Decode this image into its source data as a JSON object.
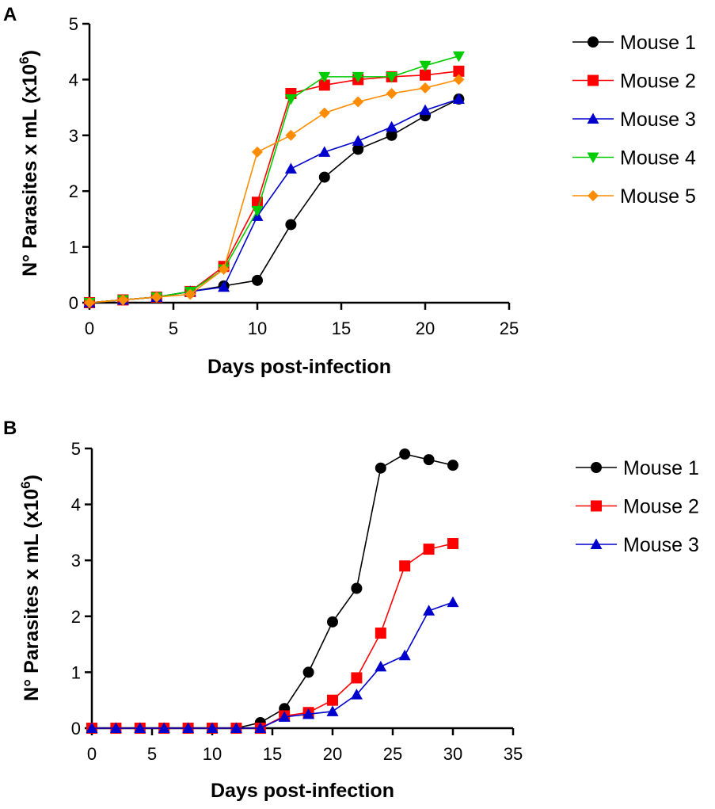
{
  "chart_data": [
    {
      "panel": "A",
      "type": "line",
      "xlabel": "Days post-infection",
      "ylabel_main": "N° Parasites x mL  (x10",
      "ylabel_sup": "6",
      "ylabel_close": ")",
      "xlim": [
        0,
        25
      ],
      "ylim": [
        0,
        5
      ],
      "xticks": [
        0,
        5,
        10,
        15,
        20,
        25
      ],
      "yticks": [
        0,
        1,
        2,
        3,
        4,
        5
      ],
      "grid": false,
      "legend_position": "right",
      "series": [
        {
          "name": "Mouse 1",
          "color": "#000000",
          "marker": "circle",
          "x": [
            0,
            2,
            4,
            6,
            8,
            10,
            12,
            14,
            16,
            18,
            20,
            22
          ],
          "y": [
            0,
            0.05,
            0.1,
            0.2,
            0.3,
            0.4,
            1.4,
            2.25,
            2.75,
            3.0,
            3.35,
            3.65
          ]
        },
        {
          "name": "Mouse 2",
          "color": "#ff0000",
          "marker": "square",
          "x": [
            0,
            2,
            4,
            6,
            8,
            10,
            12,
            14,
            16,
            18,
            20,
            22
          ],
          "y": [
            0,
            0.05,
            0.1,
            0.2,
            0.65,
            1.8,
            3.75,
            3.9,
            4.0,
            4.05,
            4.08,
            4.15
          ]
        },
        {
          "name": "Mouse 3",
          "color": "#0000cc",
          "marker": "triangle-up",
          "x": [
            0,
            2,
            4,
            6,
            8,
            10,
            12,
            14,
            16,
            18,
            20,
            22
          ],
          "y": [
            0,
            0.05,
            0.1,
            0.2,
            0.28,
            1.55,
            2.4,
            2.7,
            2.9,
            3.15,
            3.45,
            3.65
          ]
        },
        {
          "name": "Mouse 4",
          "color": "#00cc00",
          "marker": "triangle-down",
          "x": [
            0,
            2,
            4,
            6,
            8,
            10,
            12,
            14,
            16,
            18,
            20,
            22
          ],
          "y": [
            0,
            0.05,
            0.1,
            0.2,
            0.6,
            1.65,
            3.65,
            4.05,
            4.05,
            4.05,
            4.25,
            4.42
          ]
        },
        {
          "name": "Mouse 5",
          "color": "#ff8c00",
          "marker": "diamond",
          "x": [
            0,
            2,
            4,
            6,
            8,
            10,
            12,
            14,
            16,
            18,
            20,
            22
          ],
          "y": [
            0,
            0.05,
            0.1,
            0.15,
            0.6,
            2.7,
            3.0,
            3.4,
            3.6,
            3.75,
            3.85,
            4.0
          ]
        }
      ]
    },
    {
      "panel": "B",
      "type": "line",
      "xlabel": "Days post-infection",
      "ylabel_main": "N° Parasites x mL  (x10",
      "ylabel_sup": "6",
      "ylabel_close": ")",
      "xlim": [
        0,
        35
      ],
      "ylim": [
        0,
        5
      ],
      "xticks": [
        0,
        5,
        10,
        15,
        20,
        25,
        30,
        35
      ],
      "yticks": [
        0,
        1,
        2,
        3,
        4,
        5
      ],
      "grid": false,
      "legend_position": "right",
      "series": [
        {
          "name": "Mouse 1",
          "color": "#000000",
          "marker": "circle",
          "x": [
            0,
            2,
            4,
            6,
            8,
            10,
            12,
            14,
            16,
            18,
            20,
            22,
            24,
            26,
            28,
            30
          ],
          "y": [
            0,
            0,
            0,
            0,
            0,
            0,
            0,
            0.1,
            0.35,
            1.0,
            1.9,
            2.5,
            4.65,
            4.9,
            4.8,
            4.7
          ]
        },
        {
          "name": "Mouse 2",
          "color": "#ff0000",
          "marker": "square",
          "x": [
            0,
            2,
            4,
            6,
            8,
            10,
            12,
            14,
            16,
            18,
            20,
            22,
            24,
            26,
            28,
            30
          ],
          "y": [
            0,
            0,
            0,
            0,
            0,
            0,
            0,
            0,
            0.22,
            0.28,
            0.5,
            0.9,
            1.7,
            2.9,
            3.2,
            3.3
          ]
        },
        {
          "name": "Mouse 3",
          "color": "#0000cc",
          "marker": "triangle-up",
          "x": [
            0,
            2,
            4,
            6,
            8,
            10,
            12,
            14,
            16,
            18,
            20,
            22,
            24,
            26,
            28,
            30
          ],
          "y": [
            0,
            0,
            0,
            0,
            0,
            0,
            0,
            0,
            0.2,
            0.25,
            0.3,
            0.6,
            1.1,
            1.3,
            2.1,
            2.25
          ]
        }
      ]
    }
  ]
}
